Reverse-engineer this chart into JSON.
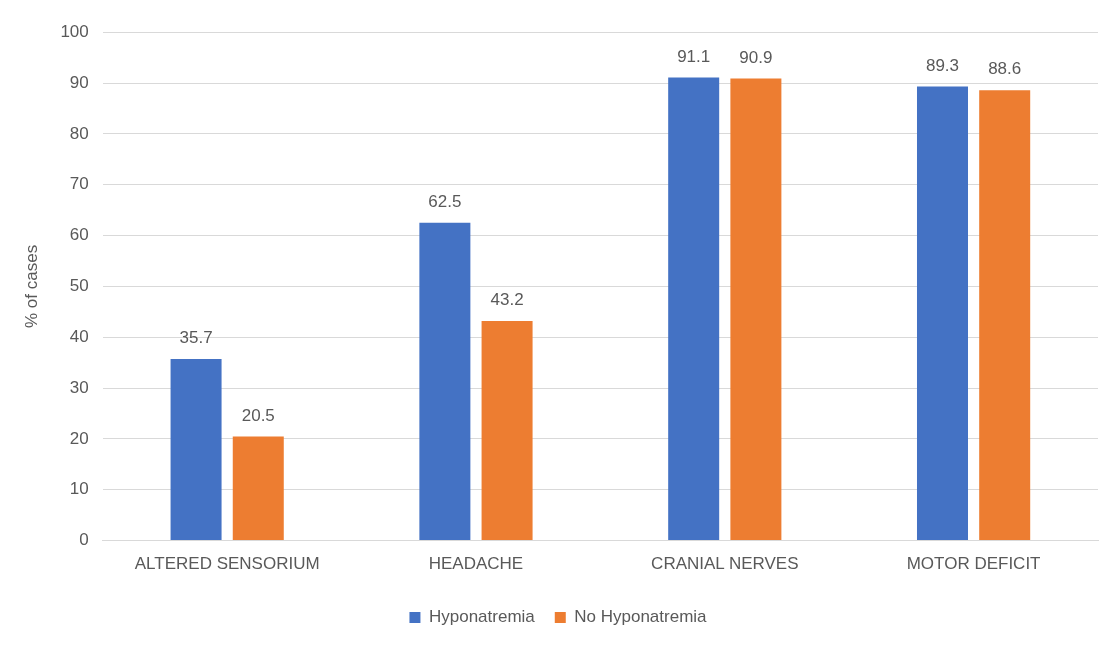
{
  "chart_data": {
    "type": "bar",
    "ylabel": "% of cases",
    "categories": [
      "ALTERED SENSORIUM",
      "HEADACHE",
      "CRANIAL NERVES",
      "MOTOR DEFICIT"
    ],
    "series": [
      {
        "name": "Hyponatremia",
        "color": "#4472c4",
        "values": [
          35.7,
          62.5,
          91.1,
          89.3
        ]
      },
      {
        "name": "No Hyponatremia",
        "color": "#ed7d31",
        "values": [
          20.5,
          43.2,
          90.9,
          88.6
        ]
      }
    ],
    "ylim": [
      0,
      100
    ],
    "yticks": [
      0,
      10,
      20,
      30,
      40,
      50,
      60,
      70,
      80,
      90,
      100
    ],
    "grid": "y",
    "legend": "bottom",
    "data_labels": true
  }
}
